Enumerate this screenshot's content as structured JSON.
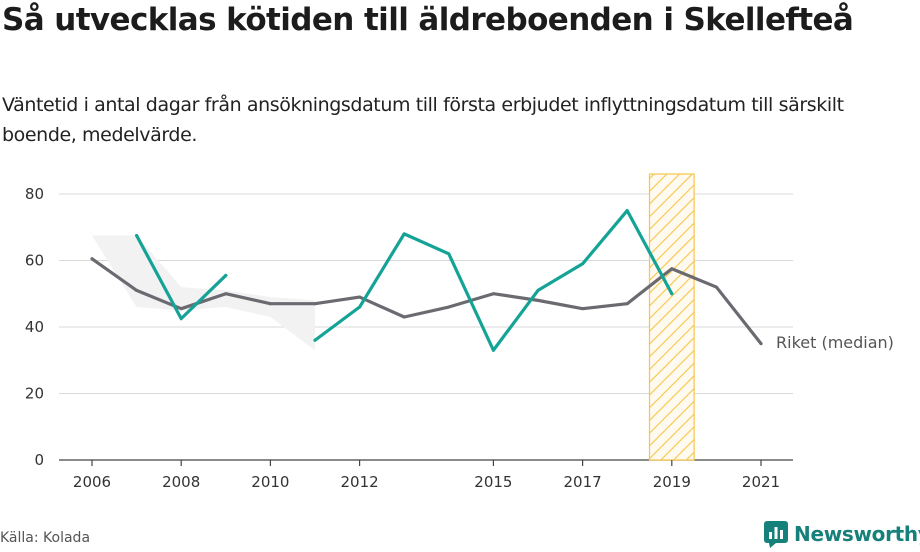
{
  "title": "Så utvecklas kötiden till äldreboenden i Skellefteå",
  "subtitle": "Väntetid i antal dagar från ansökningsdatum till första erbjudet inflyttningsdatum till särskilt boende, medelvärde.",
  "source": "Källa: Kolada",
  "brand": "Newsworthy",
  "colors": {
    "local": "#14a396",
    "reference": "#6b6a70",
    "band": "#f2f2f2",
    "highlight": "#f6c64a",
    "grid": "#d9d9d9",
    "brand": "#16807a"
  },
  "chart_data": {
    "type": "line",
    "x": [
      2006,
      2007,
      2008,
      2009,
      2010,
      2011,
      2012,
      2013,
      2014,
      2015,
      2016,
      2017,
      2018,
      2019,
      2020,
      2021
    ],
    "xticks": [
      2006,
      2008,
      2010,
      2012,
      2015,
      2017,
      2019,
      2021
    ],
    "yticks": [
      0,
      20,
      40,
      60,
      80
    ],
    "ylim": [
      0,
      86
    ],
    "xlabel": "",
    "ylabel": "",
    "series": [
      {
        "name": "",
        "role": "Skellefteå",
        "values": [
          null,
          67.5,
          42.5,
          55.5,
          null,
          36,
          46,
          68,
          62,
          33,
          51,
          59,
          75,
          50,
          null,
          null
        ]
      },
      {
        "name": "Riket (median)",
        "role": "reference",
        "values": [
          60.5,
          51,
          45.5,
          50,
          47,
          47,
          49,
          43,
          46,
          50,
          48,
          45.5,
          47,
          57.5,
          52,
          35
        ]
      }
    ],
    "band": {
      "lower": [
        null,
        46,
        45,
        46,
        43,
        33,
        null,
        null,
        null,
        null,
        null,
        null,
        null,
        null,
        null,
        null
      ],
      "upper": [
        67.5,
        67.5,
        52,
        51,
        49,
        48,
        null,
        null,
        null,
        null,
        null,
        null,
        null,
        null,
        null,
        null
      ]
    },
    "highlight_range": [
      2018.5,
      2019.5
    ]
  }
}
